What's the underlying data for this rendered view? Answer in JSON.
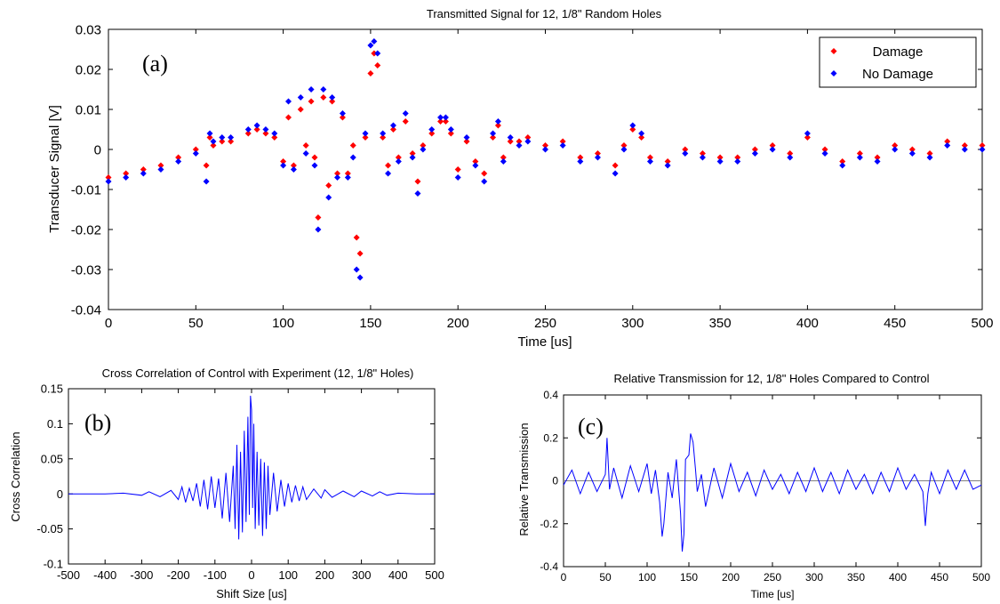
{
  "chart_data": [
    {
      "type": "scatter",
      "panel_label": "(a)",
      "title": "Transmitted Signal for 12, 1/8\" Random Holes",
      "xlabel": "Time [us]",
      "ylabel": "Transducer Signal [V]",
      "xlim": [
        0,
        500
      ],
      "ylim": [
        -0.04,
        0.03
      ],
      "xticks": [
        "0",
        "50",
        "100",
        "150",
        "200",
        "250",
        "300",
        "350",
        "400",
        "450",
        "500"
      ],
      "yticks": [
        "-0.04",
        "-0.03",
        "-0.02",
        "-0.01",
        "0",
        "0.01",
        "0.02",
        "0.03"
      ],
      "grid": false,
      "legend_position": "top-right",
      "series": [
        {
          "name": "Damage",
          "color": "#ff0000",
          "marker": "diamond",
          "x": [
            0,
            10,
            20,
            30,
            40,
            50,
            56,
            58,
            60,
            65,
            70,
            80,
            85,
            90,
            95,
            100,
            103,
            106,
            110,
            113,
            116,
            118,
            120,
            123,
            126,
            128,
            131,
            134,
            137,
            140,
            142,
            144,
            147,
            150,
            152,
            154,
            157,
            160,
            163,
            166,
            170,
            174,
            177,
            180,
            185,
            190,
            193,
            196,
            200,
            205,
            210,
            215,
            220,
            223,
            226,
            230,
            235,
            240,
            250,
            260,
            270,
            280,
            290,
            295,
            300,
            305,
            310,
            320,
            330,
            340,
            350,
            360,
            370,
            380,
            390,
            400,
            410,
            420,
            430,
            440,
            450,
            460,
            470,
            480,
            490,
            500
          ],
          "y": [
            -0.007,
            -0.006,
            -0.005,
            -0.004,
            -0.002,
            0.0,
            -0.004,
            0.003,
            0.001,
            0.002,
            0.002,
            0.004,
            0.005,
            0.004,
            0.003,
            -0.003,
            0.008,
            -0.004,
            0.01,
            0.001,
            0.012,
            -0.002,
            -0.017,
            0.013,
            -0.009,
            0.012,
            -0.006,
            0.008,
            -0.006,
            0.001,
            -0.022,
            -0.026,
            0.003,
            0.019,
            0.024,
            0.021,
            0.003,
            -0.004,
            0.005,
            -0.002,
            0.007,
            -0.001,
            -0.008,
            0.001,
            0.004,
            0.007,
            0.007,
            0.004,
            -0.005,
            0.002,
            -0.003,
            -0.006,
            0.003,
            0.006,
            -0.002,
            0.002,
            0.002,
            0.003,
            0.001,
            0.002,
            -0.002,
            -0.001,
            -0.004,
            0.001,
            0.005,
            0.003,
            -0.002,
            -0.003,
            0.0,
            -0.001,
            -0.002,
            -0.002,
            0.0,
            0.001,
            -0.001,
            0.003,
            0.0,
            -0.003,
            -0.001,
            -0.002,
            0.001,
            0.0,
            -0.001,
            0.002,
            0.001,
            0.001
          ]
        },
        {
          "name": "No Damage",
          "color": "#0000ff",
          "marker": "diamond",
          "x": [
            0,
            10,
            20,
            30,
            40,
            50,
            56,
            58,
            60,
            65,
            70,
            80,
            85,
            90,
            95,
            100,
            103,
            106,
            110,
            113,
            116,
            118,
            120,
            123,
            126,
            128,
            131,
            134,
            137,
            140,
            142,
            144,
            147,
            150,
            152,
            154,
            157,
            160,
            163,
            166,
            170,
            174,
            177,
            180,
            185,
            190,
            193,
            196,
            200,
            205,
            210,
            215,
            220,
            223,
            226,
            230,
            235,
            240,
            250,
            260,
            270,
            280,
            290,
            295,
            300,
            305,
            310,
            320,
            330,
            340,
            350,
            360,
            370,
            380,
            390,
            400,
            410,
            420,
            430,
            440,
            450,
            460,
            470,
            480,
            490,
            500
          ],
          "y": [
            -0.008,
            -0.007,
            -0.006,
            -0.005,
            -0.003,
            -0.001,
            -0.008,
            0.004,
            0.002,
            0.003,
            0.003,
            0.005,
            0.006,
            0.005,
            0.004,
            -0.004,
            0.012,
            -0.005,
            0.013,
            -0.001,
            0.015,
            -0.004,
            -0.02,
            0.015,
            -0.012,
            0.013,
            -0.007,
            0.009,
            -0.007,
            -0.002,
            -0.03,
            -0.032,
            0.004,
            0.026,
            0.027,
            0.024,
            0.004,
            -0.006,
            0.006,
            -0.003,
            0.009,
            -0.002,
            -0.011,
            0.0,
            0.005,
            0.008,
            0.008,
            0.005,
            -0.007,
            0.003,
            -0.004,
            -0.008,
            0.004,
            0.007,
            -0.003,
            0.003,
            0.001,
            0.002,
            0.0,
            0.001,
            -0.003,
            -0.002,
            -0.006,
            0.0,
            0.006,
            0.004,
            -0.003,
            -0.004,
            -0.001,
            -0.002,
            -0.003,
            -0.003,
            -0.001,
            0.0,
            -0.002,
            0.004,
            -0.001,
            -0.004,
            -0.002,
            -0.003,
            0.0,
            -0.001,
            -0.002,
            0.001,
            0.0,
            0.0
          ]
        }
      ]
    },
    {
      "type": "line",
      "panel_label": "(b)",
      "title": "Cross Correlation of Control with Experiment (12, 1/8\" Holes)",
      "xlabel": "Shift Size [us]",
      "ylabel": "Cross Correlation",
      "xlim": [
        -500,
        500
      ],
      "ylim": [
        -0.1,
        0.15
      ],
      "xticks": [
        "-500",
        "-400",
        "-300",
        "-200",
        "-100",
        "0",
        "100",
        "200",
        "300",
        "400",
        "500"
      ],
      "yticks": [
        "-0.1",
        "-0.05",
        "0",
        "0.05",
        "0.1",
        "0.15"
      ],
      "grid": false,
      "series": [
        {
          "color": "#0000ff",
          "x": [
            -500,
            -400,
            -350,
            -300,
            -280,
            -250,
            -220,
            -200,
            -190,
            -180,
            -170,
            -160,
            -150,
            -140,
            -130,
            -120,
            -110,
            -100,
            -90,
            -80,
            -70,
            -60,
            -50,
            -45,
            -40,
            -35,
            -30,
            -25,
            -20,
            -15,
            -10,
            -6,
            -3,
            0,
            3,
            6,
            10,
            15,
            20,
            25,
            30,
            35,
            40,
            45,
            50,
            60,
            70,
            80,
            90,
            100,
            110,
            120,
            130,
            140,
            150,
            170,
            190,
            200,
            220,
            250,
            280,
            300,
            330,
            350,
            370,
            400,
            450,
            500
          ],
          "y": [
            0.0,
            0.0,
            0.001,
            -0.002,
            0.003,
            -0.004,
            0.005,
            -0.008,
            0.01,
            -0.012,
            0.008,
            -0.01,
            0.015,
            -0.018,
            0.02,
            -0.022,
            0.025,
            -0.02,
            0.022,
            -0.035,
            0.03,
            -0.04,
            0.04,
            -0.05,
            0.07,
            -0.065,
            0.06,
            -0.055,
            0.09,
            -0.04,
            0.11,
            -0.03,
            0.14,
            0.12,
            -0.02,
            0.1,
            -0.05,
            0.06,
            -0.045,
            0.05,
            -0.06,
            0.045,
            -0.05,
            0.04,
            -0.03,
            0.03,
            -0.025,
            0.02,
            -0.018,
            0.015,
            -0.012,
            0.012,
            -0.01,
            0.01,
            -0.008,
            0.007,
            -0.006,
            0.006,
            -0.005,
            0.004,
            -0.004,
            0.004,
            -0.003,
            0.003,
            -0.002,
            0.001,
            0.0,
            0.0
          ]
        }
      ]
    },
    {
      "type": "line",
      "panel_label": "(c)",
      "title": "Relative Transmission for 12, 1/8\" Holes Compared to Control",
      "xlabel": "Time [us]",
      "ylabel": "Relative Transmission",
      "xlim": [
        0,
        500
      ],
      "ylim": [
        -0.4,
        0.4
      ],
      "xticks": [
        "0",
        "50",
        "100",
        "150",
        "200",
        "250",
        "300",
        "350",
        "400",
        "450",
        "500"
      ],
      "yticks": [
        "-0.4",
        "-0.2",
        "0",
        "0.2",
        "0.4"
      ],
      "grid": false,
      "series": [
        {
          "color": "#0000ff",
          "x": [
            0,
            10,
            20,
            30,
            40,
            50,
            52,
            55,
            60,
            70,
            80,
            90,
            100,
            105,
            110,
            115,
            118,
            120,
            125,
            130,
            135,
            140,
            142,
            144,
            146,
            150,
            152,
            155,
            158,
            160,
            165,
            170,
            180,
            190,
            200,
            210,
            220,
            230,
            240,
            250,
            260,
            270,
            280,
            290,
            300,
            310,
            320,
            330,
            340,
            350,
            360,
            370,
            380,
            390,
            400,
            410,
            420,
            430,
            433,
            436,
            440,
            450,
            460,
            470,
            480,
            490,
            500
          ],
          "y": [
            -0.02,
            0.05,
            -0.06,
            0.04,
            -0.05,
            0.03,
            0.2,
            -0.04,
            0.06,
            -0.08,
            0.07,
            -0.05,
            0.08,
            -0.06,
            0.05,
            -0.1,
            -0.26,
            -0.2,
            0.04,
            -0.08,
            0.1,
            -0.15,
            -0.33,
            -0.25,
            0.1,
            0.12,
            0.22,
            0.18,
            0.05,
            -0.05,
            0.03,
            -0.12,
            0.06,
            -0.08,
            0.08,
            -0.05,
            0.04,
            -0.07,
            0.05,
            -0.04,
            0.03,
            -0.06,
            0.04,
            -0.05,
            0.06,
            -0.05,
            0.04,
            -0.06,
            0.05,
            -0.04,
            0.03,
            -0.06,
            0.04,
            -0.05,
            0.06,
            -0.04,
            0.03,
            -0.05,
            -0.21,
            -0.06,
            0.04,
            -0.06,
            0.05,
            -0.04,
            0.05,
            -0.04,
            -0.02
          ]
        }
      ]
    }
  ]
}
